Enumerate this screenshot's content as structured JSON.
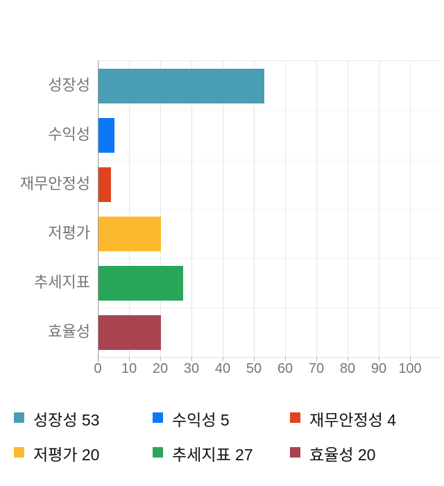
{
  "chart_data": {
    "type": "bar",
    "orientation": "horizontal",
    "title": "",
    "categories": [
      "성장성",
      "수익성",
      "재무안정성",
      "저평가",
      "추세지표",
      "효율성"
    ],
    "values": [
      53,
      5,
      4,
      20,
      27,
      20
    ],
    "colors": [
      "#4a9eb4",
      "#0b79f7",
      "#df431f",
      "#fcb930",
      "#2aa65a",
      "#a94350"
    ],
    "xlabel": "",
    "ylabel": "",
    "xlim": [
      0,
      100
    ],
    "x_ticks": [
      "0",
      "10",
      "20",
      "30",
      "40",
      "50",
      "60",
      "70",
      "80",
      "90",
      "100"
    ],
    "grid": true,
    "legend_position": "bottom-left",
    "legend": [
      {
        "label": "성장성 53",
        "color": "#4a9eb4"
      },
      {
        "label": "수익성 5",
        "color": "#0b79f7"
      },
      {
        "label": "재무안정성 4",
        "color": "#df431f"
      },
      {
        "label": "저평가 20",
        "color": "#fcb930"
      },
      {
        "label": "추세지표 27",
        "color": "#2aa65a"
      },
      {
        "label": "효율성 20",
        "color": "#a94350"
      }
    ]
  },
  "style_colors": {
    "background": "#ffffff",
    "axis_line": "#9a9a9a",
    "grid_vertical": "#e6e6e6",
    "grid_horizontal": "#f0f0f0",
    "axis_text": "#757575",
    "legend_text": "#111111"
  }
}
